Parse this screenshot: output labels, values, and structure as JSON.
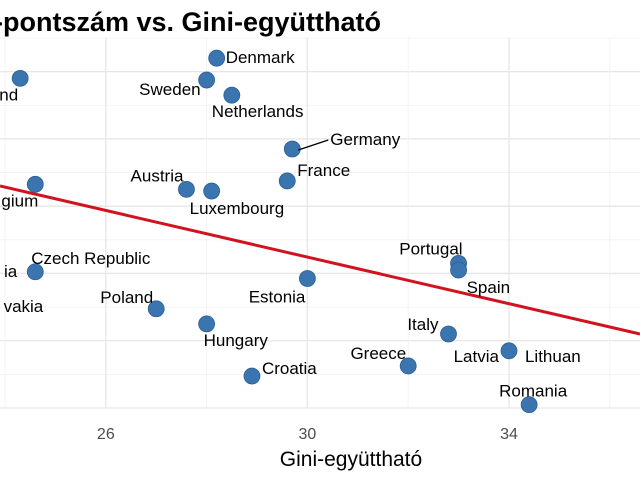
{
  "chart_data": {
    "type": "scatter",
    "title": "-pontszám vs. Gini-együttható",
    "xlabel": "Gini-együttható",
    "ylabel": "",
    "xlim": [
      23.9,
      36.6
    ],
    "ylim": [
      0,
      11
    ],
    "x_ticks": [
      26,
      30,
      34
    ],
    "grid": true,
    "trendline": {
      "color": "#d1121f",
      "x": [
        23.9,
        36.6
      ],
      "y": [
        6.6,
        2.2
      ]
    },
    "points": [
      {
        "label": "Sweden",
        "x": 28.0,
        "y": 9.75
      },
      {
        "label": "Denmark",
        "x": 28.2,
        "y": 10.4
      },
      {
        "label": "Netherlands",
        "x": 28.5,
        "y": 9.3
      },
      {
        "label": "Germany",
        "x": 29.7,
        "y": 7.7
      },
      {
        "label": "France",
        "x": 29.6,
        "y": 6.75
      },
      {
        "label": "Austria",
        "x": 27.6,
        "y": 6.5
      },
      {
        "label": "Luxembourg",
        "x": 28.1,
        "y": 6.45
      },
      {
        "label": "and",
        "x": 24.3,
        "y": 9.8
      },
      {
        "label": "gium",
        "x": 24.6,
        "y": 6.65
      },
      {
        "label": "Czech Republic",
        "x": 24.6,
        "y": 4.05
      },
      {
        "label": "ia",
        "x": 24.6,
        "y": 4.05
      },
      {
        "label": "vakia",
        "x": 24.6,
        "y": 4.05
      },
      {
        "label": "Poland",
        "x": 27.0,
        "y": 2.95
      },
      {
        "label": "Hungary",
        "x": 28.0,
        "y": 2.5
      },
      {
        "label": "Croatia",
        "x": 28.9,
        "y": 0.95
      },
      {
        "label": "Estonia",
        "x": 30.0,
        "y": 3.85
      },
      {
        "label": "Portugal",
        "x": 33.0,
        "y": 4.3
      },
      {
        "label": "Spain",
        "x": 33.0,
        "y": 4.1
      },
      {
        "label": "Italy",
        "x": 32.8,
        "y": 2.2
      },
      {
        "label": "Greece",
        "x": 32.0,
        "y": 1.25
      },
      {
        "label": "Latvia",
        "x": 34.0,
        "y": 1.7
      },
      {
        "label": "Lithuan",
        "x": 34.0,
        "y": 1.7
      },
      {
        "label": "Romania",
        "x": 34.4,
        "y": 0.1
      }
    ]
  }
}
